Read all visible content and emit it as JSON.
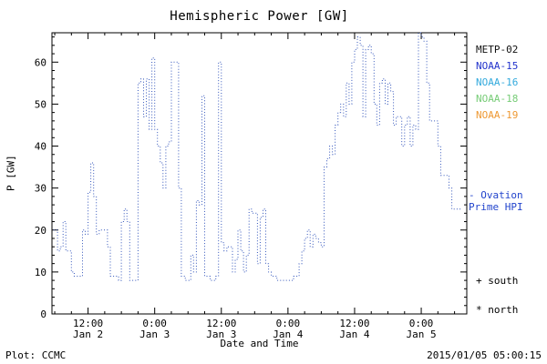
{
  "title": "Hemispheric Power [GW]",
  "ylabel": "P [GW]",
  "xlabel": "Date and Time",
  "footer": {
    "left": "Plot: CCMC",
    "right": "2015/01/05 05:00:15"
  },
  "legend": {
    "satellites": [
      {
        "label": "METP-02",
        "color": "#111111"
      },
      {
        "label": "NOAA-15",
        "color": "#2233cc"
      },
      {
        "label": "NOAA-16",
        "color": "#33aadd"
      },
      {
        "label": "NOAA-18",
        "color": "#77cc77"
      },
      {
        "label": "NOAA-19",
        "color": "#ee9933"
      }
    ]
  },
  "annotations": {
    "ovation_line1": "- Ovation",
    "ovation_line2": "Prime HPI",
    "ovation_color": "#2244cc",
    "south": "+ south",
    "north": "* north"
  },
  "chart_data": {
    "type": "line",
    "step": true,
    "line_style": "dotted",
    "line_color": "#3355bb",
    "series_name": "Ovation Prime HPI",
    "title": "Hemispheric Power [GW]",
    "xlabel": "Date and Time",
    "ylabel": "P [GW]",
    "ylim": [
      0,
      67
    ],
    "x_range_hours": [
      5.5,
      80.2
    ],
    "x_units": "hours since 2015-01-02 00:00",
    "yticks": [
      0,
      10,
      20,
      30,
      40,
      50,
      60
    ],
    "y_minor_step": 2,
    "x_minor_step_hours": 3,
    "legend_position": "right",
    "xticks": [
      {
        "t": 12,
        "time": "12:00",
        "date": "Jan 2"
      },
      {
        "t": 24,
        "time": "0:00",
        "date": "Jan 3"
      },
      {
        "t": 36,
        "time": "12:00",
        "date": "Jan 3"
      },
      {
        "t": 48,
        "time": "0:00",
        "date": "Jan 4"
      },
      {
        "t": 60,
        "time": "12:00",
        "date": "Jan 4"
      },
      {
        "t": 72,
        "time": "0:00",
        "date": "Jan 5"
      }
    ],
    "points": [
      [
        5.8,
        20
      ],
      [
        6.5,
        15
      ],
      [
        7,
        16
      ],
      [
        7.5,
        22
      ],
      [
        8,
        15
      ],
      [
        9,
        10
      ],
      [
        9.5,
        9
      ],
      [
        10.5,
        9
      ],
      [
        11,
        20
      ],
      [
        11.5,
        19
      ],
      [
        12,
        29
      ],
      [
        12.5,
        36
      ],
      [
        13,
        28
      ],
      [
        13.5,
        19
      ],
      [
        14,
        20
      ],
      [
        15,
        20
      ],
      [
        15.5,
        16
      ],
      [
        16,
        9
      ],
      [
        17.5,
        8
      ],
      [
        18,
        22
      ],
      [
        18.5,
        25
      ],
      [
        19,
        22
      ],
      [
        19.5,
        8
      ],
      [
        20.5,
        8
      ],
      [
        21,
        55
      ],
      [
        21.5,
        56
      ],
      [
        22,
        47
      ],
      [
        22.5,
        56
      ],
      [
        23,
        44
      ],
      [
        23.5,
        61
      ],
      [
        24,
        44
      ],
      [
        24.5,
        40
      ],
      [
        25,
        36
      ],
      [
        25.5,
        30
      ],
      [
        26,
        40
      ],
      [
        26.5,
        41
      ],
      [
        27,
        60
      ],
      [
        27.8,
        60
      ],
      [
        28.3,
        30
      ],
      [
        28.8,
        9
      ],
      [
        29.5,
        8
      ],
      [
        30.5,
        14
      ],
      [
        31,
        10
      ],
      [
        31.5,
        27
      ],
      [
        32,
        26
      ],
      [
        32.5,
        52
      ],
      [
        33,
        9
      ],
      [
        34,
        8
      ],
      [
        35,
        9
      ],
      [
        35.5,
        60
      ],
      [
        36,
        17
      ],
      [
        36.5,
        15
      ],
      [
        37,
        16
      ],
      [
        38,
        10
      ],
      [
        38.5,
        13
      ],
      [
        39,
        20
      ],
      [
        39.5,
        15
      ],
      [
        40,
        10
      ],
      [
        40.5,
        14
      ],
      [
        41,
        25
      ],
      [
        41.5,
        24
      ],
      [
        42.5,
        12
      ],
      [
        43,
        23
      ],
      [
        43.5,
        25
      ],
      [
        44,
        12
      ],
      [
        44.5,
        10
      ],
      [
        45,
        9
      ],
      [
        46,
        8
      ],
      [
        48,
        8
      ],
      [
        49,
        9
      ],
      [
        50,
        12
      ],
      [
        50.5,
        15
      ],
      [
        51,
        18
      ],
      [
        51.5,
        20
      ],
      [
        52,
        16
      ],
      [
        52.5,
        19
      ],
      [
        53,
        18
      ],
      [
        53.5,
        17
      ],
      [
        54,
        16
      ],
      [
        54.5,
        35
      ],
      [
        55,
        37
      ],
      [
        55.5,
        40
      ],
      [
        56,
        38
      ],
      [
        56.5,
        45
      ],
      [
        57,
        48
      ],
      [
        57.5,
        50
      ],
      [
        58,
        47
      ],
      [
        58.5,
        55
      ],
      [
        59,
        50
      ],
      [
        59.5,
        60
      ],
      [
        60,
        63
      ],
      [
        60.5,
        66
      ],
      [
        61,
        64
      ],
      [
        61.5,
        47
      ],
      [
        62,
        63
      ],
      [
        62.5,
        64
      ],
      [
        63,
        62
      ],
      [
        63.5,
        50
      ],
      [
        64,
        45
      ],
      [
        64.5,
        55
      ],
      [
        65,
        56
      ],
      [
        65.5,
        50
      ],
      [
        66,
        55
      ],
      [
        66.5,
        53
      ],
      [
        67,
        45
      ],
      [
        67.5,
        47
      ],
      [
        68.5,
        40
      ],
      [
        69,
        45
      ],
      [
        69.5,
        47
      ],
      [
        70,
        40
      ],
      [
        70.5,
        45
      ],
      [
        71,
        44
      ],
      [
        71.5,
        67
      ],
      [
        72,
        66
      ],
      [
        72.5,
        65
      ],
      [
        73,
        55
      ],
      [
        73.5,
        46
      ],
      [
        74.5,
        46
      ],
      [
        75,
        40
      ],
      [
        75.5,
        33
      ],
      [
        76.5,
        33
      ],
      [
        77,
        30
      ],
      [
        77.5,
        25
      ],
      [
        79.2,
        25
      ]
    ]
  }
}
